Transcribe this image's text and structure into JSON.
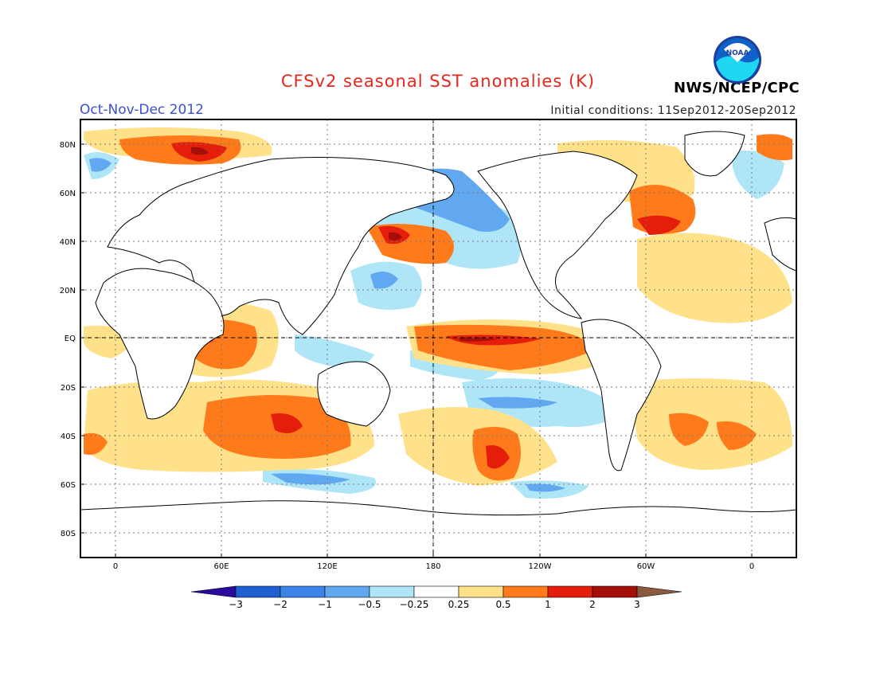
{
  "header": {
    "title": "CFSv2 seasonal SST anomalies (K)",
    "season": "Oct-Nov-Dec 2012",
    "initial_conditions": "Initial conditions: 11Sep2012-20Sep2012",
    "organization": "NWS/NCEP/CPC",
    "logo_text": "NOAA",
    "logo_icon": "noaa-logo-icon"
  },
  "map": {
    "lon_ticks": [
      "0",
      "60E",
      "120E",
      "180",
      "120W",
      "60W",
      "0"
    ],
    "lat_ticks": [
      "80N",
      "60N",
      "40N",
      "20N",
      "EQ",
      "20S",
      "40S",
      "60S",
      "80S"
    ]
  },
  "colorbar": {
    "labels": [
      "-3",
      "-2",
      "-1",
      "-0.5",
      "-0.25",
      "0.25",
      "0.5",
      "1",
      "2",
      "3"
    ],
    "colors": [
      "#2a0a9c",
      "#1f5fd0",
      "#3b83e6",
      "#62a8f0",
      "#aee6f8",
      "#ffffff",
      "#ffe18a",
      "#ff7a1a",
      "#e51e0c",
      "#a50f0a",
      "#8a5a40"
    ]
  }
}
